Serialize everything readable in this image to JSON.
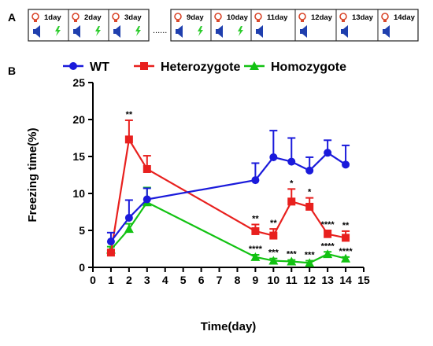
{
  "panel_a": {
    "label": "A",
    "boxes": [
      {
        "day": "1day",
        "shock": true
      },
      {
        "day": "2day",
        "shock": true
      },
      {
        "day": "3day",
        "shock": true
      },
      {
        "day": "9day",
        "shock": true
      },
      {
        "day": "10day",
        "shock": true
      },
      {
        "day": "11day",
        "shock": false
      },
      {
        "day": "12day",
        "shock": false
      },
      {
        "day": "13day",
        "shock": false
      },
      {
        "day": "14day",
        "shock": false
      }
    ],
    "ellipsis": "......",
    "icons": {
      "top": "lightbulb-icon",
      "bottom_left": "speaker-icon",
      "bottom_right": "lightning-icon"
    },
    "colors": {
      "bulb": "#d9472b",
      "speaker": "#1f3fae",
      "bolt": "#2ecc2e"
    }
  },
  "chart_data": {
    "type": "line",
    "panel_label": "B",
    "xlabel": "Time(day)",
    "ylabel": "Freezing time(%)",
    "xlim": [
      0,
      15
    ],
    "ylim": [
      0,
      25
    ],
    "xticks": [
      0,
      1,
      2,
      3,
      4,
      5,
      6,
      7,
      8,
      9,
      10,
      11,
      12,
      13,
      14,
      15
    ],
    "yticks": [
      0,
      5,
      10,
      15,
      20,
      25
    ],
    "legend_position": "top",
    "series": [
      {
        "name": "WT",
        "color": "#1a1adb",
        "marker": "circle",
        "x": [
          1,
          2,
          3,
          9,
          10,
          11,
          12,
          13,
          14
        ],
        "y": [
          3.5,
          6.7,
          9.2,
          11.8,
          14.9,
          14.3,
          13.1,
          15.5,
          13.9
        ],
        "err": [
          1.2,
          2.4,
          1.5,
          2.3,
          3.6,
          3.2,
          1.8,
          1.7,
          2.6
        ]
      },
      {
        "name": "Heterozygote",
        "color": "#e8201e",
        "marker": "square",
        "x": [
          1,
          2,
          3,
          9,
          10,
          11,
          12,
          13,
          14
        ],
        "y": [
          2.0,
          17.3,
          13.3,
          4.9,
          4.3,
          8.9,
          8.2,
          4.5,
          4.0
        ],
        "err": [
          0.3,
          2.6,
          1.8,
          0.9,
          0.9,
          1.7,
          1.2,
          0.5,
          0.9
        ],
        "annotations": [
          "",
          "**",
          "",
          "**",
          "**",
          "*",
          "*",
          "****",
          "**"
        ]
      },
      {
        "name": "Homozygote",
        "color": "#12c212",
        "marker": "triangle",
        "x": [
          1,
          2,
          3,
          9,
          10,
          11,
          12,
          13,
          14
        ],
        "y": [
          2.4,
          5.2,
          8.8,
          1.4,
          0.9,
          0.8,
          0.6,
          1.8,
          1.2
        ],
        "err": [
          0.4,
          0.7,
          2.0,
          0.3,
          0.3,
          0.2,
          0.3,
          0.3,
          0.2
        ],
        "annotations": [
          "",
          "",
          "",
          "****",
          "***",
          "***",
          "***",
          "****",
          "****"
        ]
      }
    ]
  }
}
